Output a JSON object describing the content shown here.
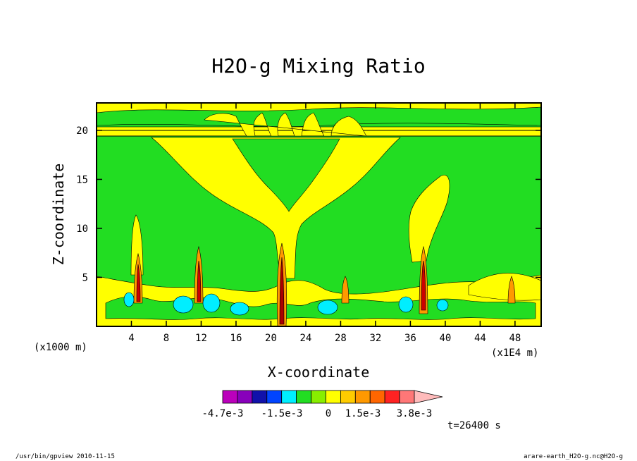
{
  "chart_data": {
    "type": "heatmap",
    "title": "H2O-g Mixing Ratio",
    "xlabel": "X-coordinate",
    "ylabel": "Z-coordinate",
    "xlim": [
      0,
      51
    ],
    "ylim": [
      0,
      22.8
    ],
    "x_ticks": [
      "4",
      "8",
      "12",
      "16",
      "20",
      "24",
      "28",
      "32",
      "36",
      "40",
      "44",
      "48"
    ],
    "x_tick_values": [
      4,
      8,
      12,
      16,
      20,
      24,
      28,
      32,
      36,
      40,
      44,
      48
    ],
    "y_ticks": [
      "5",
      "10",
      "15",
      "20"
    ],
    "y_tick_values": [
      5,
      10,
      15,
      20
    ],
    "x_unit_left": "(x1000 m)",
    "x_unit_right": "(x1E4 m)",
    "colorbar": {
      "labels": [
        "-4.7e-3",
        "-1.5e-3",
        "0",
        "1.5e-3",
        "3.8e-3"
      ],
      "colors": [
        "#bb00bb",
        "#8800bb",
        "#1111aa",
        "#0044ff",
        "#00eeff",
        "#22dd22",
        "#88ee00",
        "#ffff00",
        "#ffcc00",
        "#ff9900",
        "#ff6600",
        "#ff2222",
        "#ff7777",
        "#ffbbbb"
      ],
      "extend": "right"
    },
    "levels_summary": [
      {
        "region": "upper band near z=20",
        "value": "0 to 1.5e-3",
        "color": "#ffff00"
      },
      {
        "region": "broad mid-level",
        "value": "~0",
        "color": "#22dd22"
      },
      {
        "region": "central V-shaped plume",
        "value": "positive",
        "color": "#ffff00"
      },
      {
        "region": "convective columns",
        "x": [
          4.5,
          12,
          21.5,
          28.5,
          37.5,
          47.5
        ],
        "value": "up to 3.8e-3+"
      },
      {
        "region": "low-level pockets",
        "value": "-1.5e-3",
        "color": "#00eeff"
      }
    ]
  },
  "annotations": {
    "time": "t=26400 s",
    "footer_left": "/usr/bin/gpview   2010-11-15",
    "footer_right": "arare-earth_H2O-g.nc@H2O-g"
  }
}
